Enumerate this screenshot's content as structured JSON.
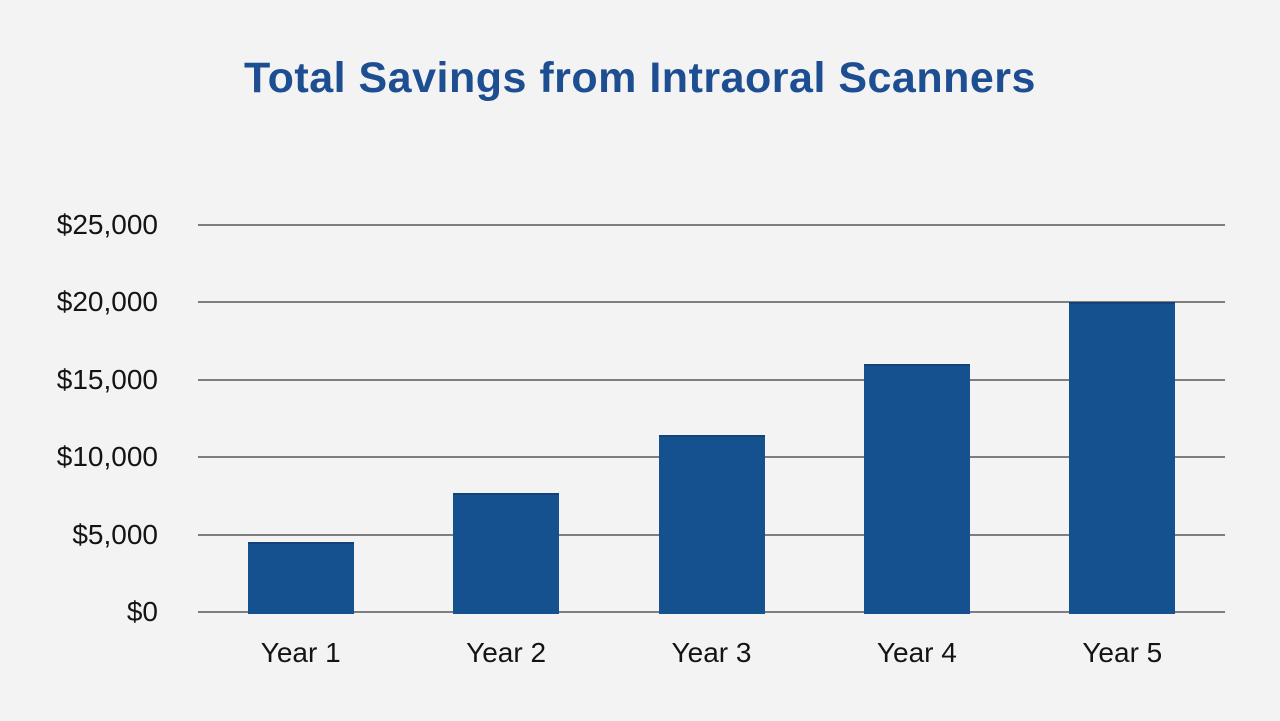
{
  "page": {
    "background_color": "#f3f3f3"
  },
  "chart_data": {
    "type": "bar",
    "title": "Total Savings from Intraoral Scanners",
    "categories": [
      "Year 1",
      "Year 2",
      "Year 3",
      "Year 4",
      "Year 5"
    ],
    "values": [
      4500,
      7700,
      11400,
      16000,
      20000
    ],
    "xlabel": "",
    "ylabel": "",
    "ylim": [
      0,
      25000
    ],
    "y_ticks": [
      {
        "value": 0,
        "label": "$0"
      },
      {
        "value": 5000,
        "label": "$5,000"
      },
      {
        "value": 10000,
        "label": "$10,000"
      },
      {
        "value": 15000,
        "label": "$15,000"
      },
      {
        "value": 20000,
        "label": "$20,000"
      },
      {
        "value": 25000,
        "label": "$25,000"
      }
    ],
    "grid": true,
    "legend": false,
    "bar_color": "#15508f",
    "title_color": "#1d4e91",
    "gridline_color": "#7e7e7e",
    "tick_label_color": "#141414"
  }
}
